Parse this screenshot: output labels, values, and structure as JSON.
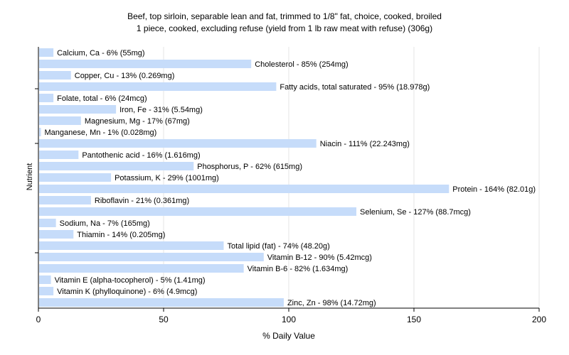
{
  "chart_data": {
    "type": "bar",
    "orientation": "horizontal",
    "title": "Beef, top sirloin, separable lean and fat, trimmed to 1/8\" fat, choice, cooked, broiled",
    "subtitle": "1 piece, cooked, excluding refuse (yield from 1 lb raw meat with refuse) (306g)",
    "xlabel": "% Daily Value",
    "ylabel": "Nutrient",
    "xlim": [
      0,
      200
    ],
    "xticks": [
      0,
      50,
      100,
      150,
      200
    ],
    "grid": true,
    "bar_color": "#c6dcfa",
    "categories": [
      "Calcium, Ca",
      "Cholesterol",
      "Copper, Cu",
      "Fatty acids, total saturated",
      "Folate, total",
      "Iron, Fe",
      "Magnesium, Mg",
      "Manganese, Mn",
      "Niacin",
      "Pantothenic acid",
      "Phosphorus, P",
      "Potassium, K",
      "Protein",
      "Riboflavin",
      "Selenium, Se",
      "Sodium, Na",
      "Thiamin",
      "Total lipid (fat)",
      "Vitamin B-12",
      "Vitamin B-6",
      "Vitamin E (alpha-tocopherol)",
      "Vitamin K (phylloquinone)",
      "Zinc, Zn"
    ],
    "values": [
      6,
      85,
      13,
      95,
      6,
      31,
      17,
      1,
      111,
      16,
      62,
      29,
      164,
      21,
      127,
      7,
      14,
      74,
      90,
      82,
      5,
      6,
      98
    ],
    "labels": [
      "Calcium, Ca - 6% (55mg)",
      "Cholesterol - 85% (254mg)",
      "Copper, Cu - 13% (0.269mg)",
      "Fatty acids, total saturated - 95% (18.978g)",
      "Folate, total - 6% (24mcg)",
      "Iron, Fe - 31% (5.54mg)",
      "Magnesium, Mg - 17% (67mg)",
      "Manganese, Mn - 1% (0.028mg)",
      "Niacin - 111% (22.243mg)",
      "Pantothenic acid - 16% (1.616mg)",
      "Phosphorus, P - 62% (615mg)",
      "Potassium, K - 29% (1001mg)",
      "Protein - 164% (82.01g)",
      "Riboflavin - 21% (0.361mg)",
      "Selenium, Se - 127% (88.7mcg)",
      "Sodium, Na - 7% (165mg)",
      "Thiamin - 14% (0.205mg)",
      "Total lipid (fat) - 74% (48.20g)",
      "Vitamin B-12 - 90% (5.42mcg)",
      "Vitamin B-6 - 82% (1.634mg)",
      "Vitamin E (alpha-tocopherol) - 5% (1.41mg)",
      "Vitamin K (phylloquinone) - 6% (4.9mcg)",
      "Zinc, Zn - 98% (14.72mg)"
    ]
  }
}
